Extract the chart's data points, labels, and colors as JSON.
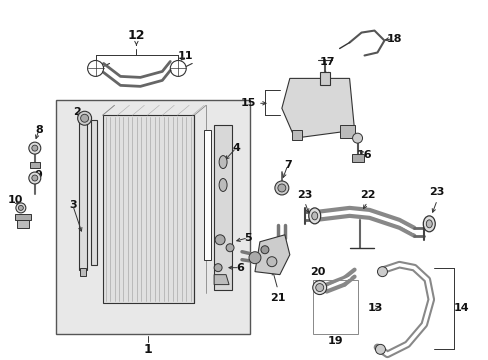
{
  "bg_color": "#ffffff",
  "line_color": "#333333",
  "text_color": "#111111",
  "fill_light": "#e8e8e8",
  "fill_med": "#cccccc",
  "label_fontsize": 7.5,
  "figsize": [
    4.89,
    3.6
  ],
  "dpi": 100,
  "xlim": [
    0,
    489
  ],
  "ylim": [
    0,
    360
  ]
}
